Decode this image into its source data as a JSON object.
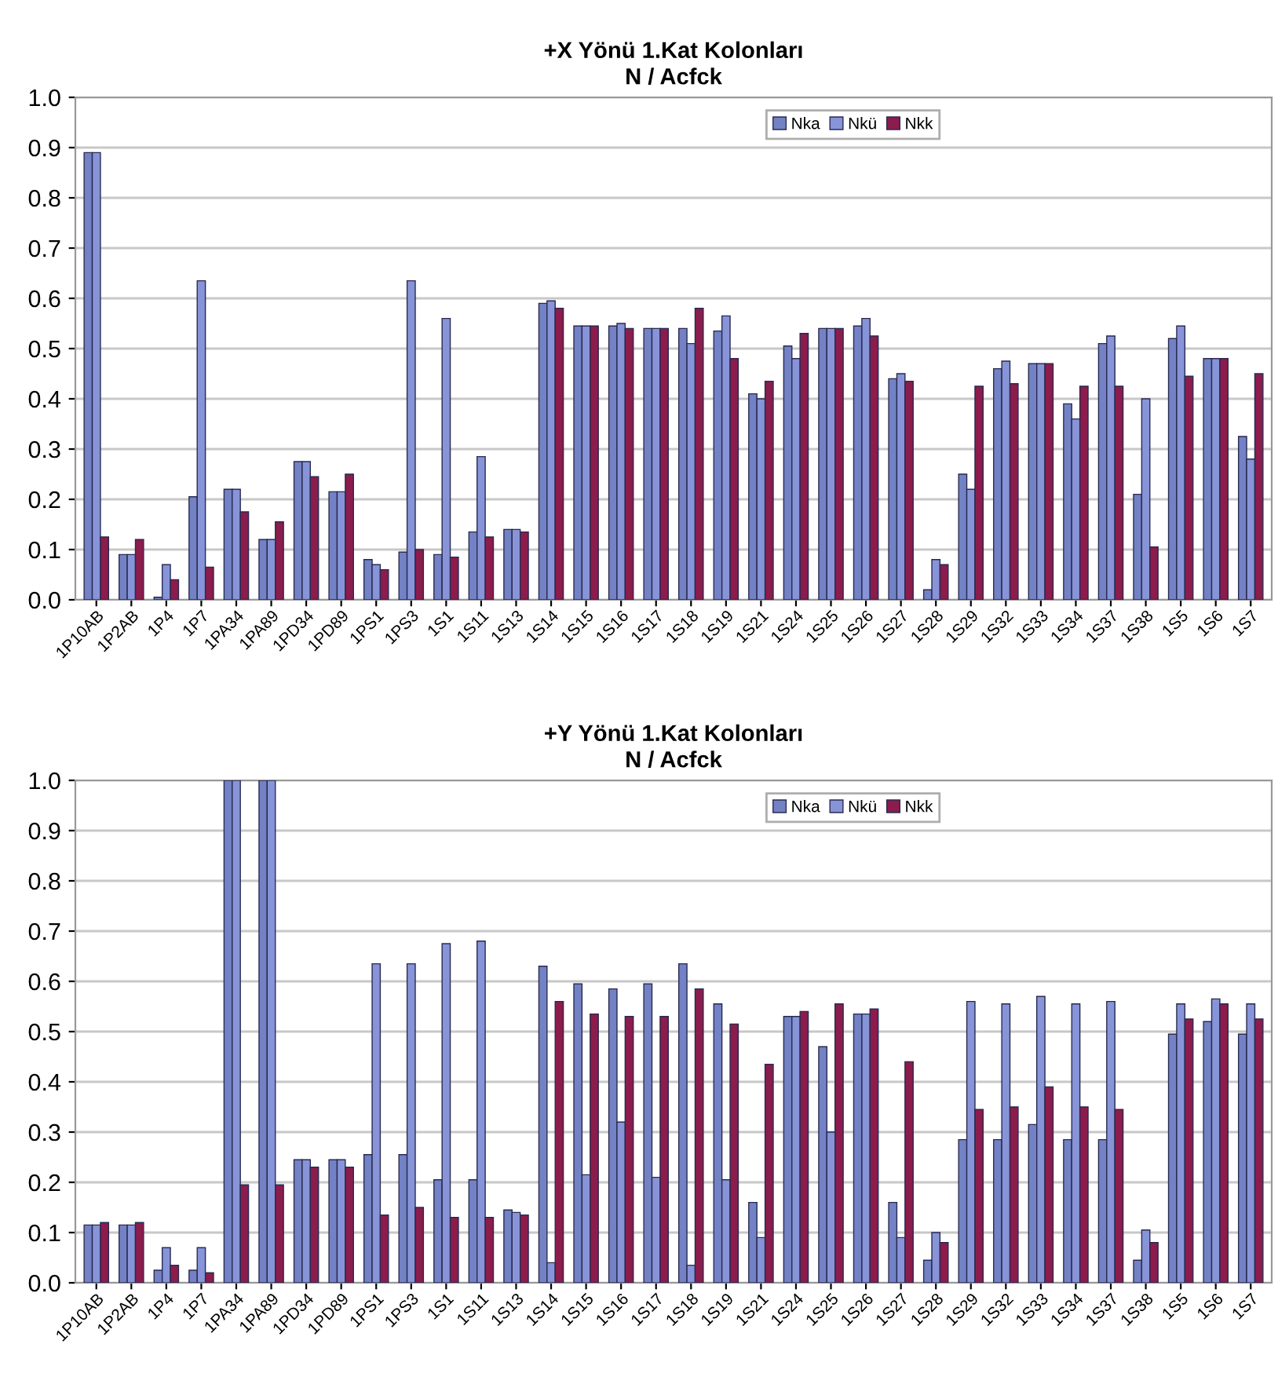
{
  "chart_data": [
    {
      "type": "bar",
      "title": "+X Yönü 1.Kat Kolonları",
      "subtitle": "N / Acfck",
      "categories": [
        "1P10AB",
        "1P2AB",
        "1P4",
        "1P7",
        "1PA34",
        "1PA89",
        "1PD34",
        "1PD89",
        "1PS1",
        "1PS3",
        "1S1",
        "1S11",
        "1S13",
        "1S14",
        "1S15",
        "1S16",
        "1S17",
        "1S18",
        "1S19",
        "1S21",
        "1S24",
        "1S25",
        "1S26",
        "1S27",
        "1S28",
        "1S29",
        "1S32",
        "1S33",
        "1S34",
        "1S37",
        "1S38",
        "1S5",
        "1S6",
        "1S7"
      ],
      "series": [
        {
          "name": "Nka",
          "color": "#7282c4",
          "values": [
            0.89,
            0.09,
            0.005,
            0.205,
            0.22,
            0.12,
            0.275,
            0.215,
            0.08,
            0.095,
            0.09,
            0.135,
            0.14,
            0.59,
            0.545,
            0.545,
            0.54,
            0.54,
            0.535,
            0.41,
            0.505,
            0.54,
            0.545,
            0.44,
            0.02,
            0.25,
            0.46,
            0.47,
            0.39,
            0.51,
            0.21,
            0.52,
            0.48,
            0.325
          ]
        },
        {
          "name": "Nkü",
          "color": "#8794d8",
          "values": [
            0.89,
            0.09,
            0.07,
            0.635,
            0.22,
            0.12,
            0.275,
            0.215,
            0.07,
            0.635,
            0.56,
            0.285,
            0.14,
            0.595,
            0.545,
            0.55,
            0.54,
            0.51,
            0.565,
            0.4,
            0.48,
            0.54,
            0.56,
            0.45,
            0.08,
            0.22,
            0.475,
            0.47,
            0.36,
            0.525,
            0.4,
            0.545,
            0.48,
            0.28
          ]
        },
        {
          "name": "Nkk",
          "color": "#8b1c4c",
          "values": [
            0.125,
            0.12,
            0.04,
            0.065,
            0.175,
            0.155,
            0.245,
            0.25,
            0.06,
            0.1,
            0.085,
            0.125,
            0.135,
            0.58,
            0.545,
            0.54,
            0.54,
            0.58,
            0.48,
            0.435,
            0.53,
            0.54,
            0.525,
            0.435,
            0.07,
            0.425,
            0.43,
            0.47,
            0.425,
            0.425,
            0.105,
            0.445,
            0.48,
            0.45
          ]
        }
      ],
      "ylim": [
        0,
        1.0
      ],
      "yticks": [
        {
          "value": 0,
          "label": "0.0"
        },
        {
          "value": 0.1,
          "label": "0.1"
        },
        {
          "value": 0.2,
          "label": "0.2"
        },
        {
          "value": 0.3,
          "label": "0.3"
        },
        {
          "value": 0.4,
          "label": "0.4"
        },
        {
          "value": 0.5,
          "label": "0.5"
        },
        {
          "value": 0.6,
          "label": "0.6"
        },
        {
          "value": 0.7,
          "label": "0.7"
        },
        {
          "value": 0.8,
          "label": "0.8"
        },
        {
          "value": 0.9,
          "label": "0.9"
        },
        {
          "value": 1.0,
          "label": "1.0"
        }
      ],
      "grid": "y",
      "legend": "top"
    },
    {
      "type": "bar",
      "title": "+Y Yönü 1.Kat Kolonları",
      "subtitle": "N / Acfck",
      "categories": [
        "1P10AB",
        "1P2AB",
        "1P4",
        "1P7",
        "1PA34",
        "1PA89",
        "1PD34",
        "1PD89",
        "1PS1",
        "1PS3",
        "1S1",
        "1S11",
        "1S13",
        "1S14",
        "1S15",
        "1S16",
        "1S17",
        "1S18",
        "1S19",
        "1S21",
        "1S24",
        "1S25",
        "1S26",
        "1S27",
        "1S28",
        "1S29",
        "1S32",
        "1S33",
        "1S34",
        "1S37",
        "1S38",
        "1S5",
        "1S6",
        "1S7"
      ],
      "series": [
        {
          "name": "Nka",
          "color": "#7282c4",
          "values": [
            0.115,
            0.115,
            0.025,
            0.025,
            1.0,
            1.0,
            0.245,
            0.245,
            0.255,
            0.255,
            0.205,
            0.205,
            0.145,
            0.63,
            0.595,
            0.585,
            0.595,
            0.635,
            0.555,
            0.16,
            0.53,
            0.47,
            0.535,
            0.16,
            0.045,
            0.285,
            0.285,
            0.315,
            0.285,
            0.285,
            0.045,
            0.495,
            0.52,
            0.495
          ]
        },
        {
          "name": "Nkü",
          "color": "#8794d8",
          "values": [
            0.115,
            0.115,
            0.07,
            0.07,
            1.0,
            1.0,
            0.245,
            0.245,
            0.635,
            0.635,
            0.675,
            0.68,
            0.14,
            0.04,
            0.215,
            0.32,
            0.21,
            0.035,
            0.205,
            0.09,
            0.53,
            0.3,
            0.535,
            0.09,
            0.1,
            0.56,
            0.555,
            0.57,
            0.555,
            0.56,
            0.105,
            0.555,
            0.565,
            0.555
          ]
        },
        {
          "name": "Nkk",
          "color": "#8b1c4c",
          "values": [
            0.12,
            0.12,
            0.035,
            0.02,
            0.195,
            0.195,
            0.23,
            0.23,
            0.135,
            0.15,
            0.13,
            0.13,
            0.135,
            0.56,
            0.535,
            0.53,
            0.53,
            0.585,
            0.515,
            0.435,
            0.54,
            0.555,
            0.545,
            0.44,
            0.08,
            0.345,
            0.35,
            0.39,
            0.35,
            0.345,
            0.08,
            0.525,
            0.555,
            0.525
          ]
        }
      ],
      "ylim": [
        0,
        1.0
      ],
      "yticks": [
        {
          "value": 0,
          "label": "0.0"
        },
        {
          "value": 0.1,
          "label": "0.1"
        },
        {
          "value": 0.2,
          "label": "0.2"
        },
        {
          "value": 0.3,
          "label": "0.3"
        },
        {
          "value": 0.4,
          "label": "0.4"
        },
        {
          "value": 0.5,
          "label": "0.5"
        },
        {
          "value": 0.6,
          "label": "0.6"
        },
        {
          "value": 0.7,
          "label": "0.7"
        },
        {
          "value": 0.8,
          "label": "0.8"
        },
        {
          "value": 0.9,
          "label": "0.9"
        },
        {
          "value": 1.0,
          "label": "1.0"
        }
      ],
      "grid": "y",
      "legend": "top"
    }
  ]
}
